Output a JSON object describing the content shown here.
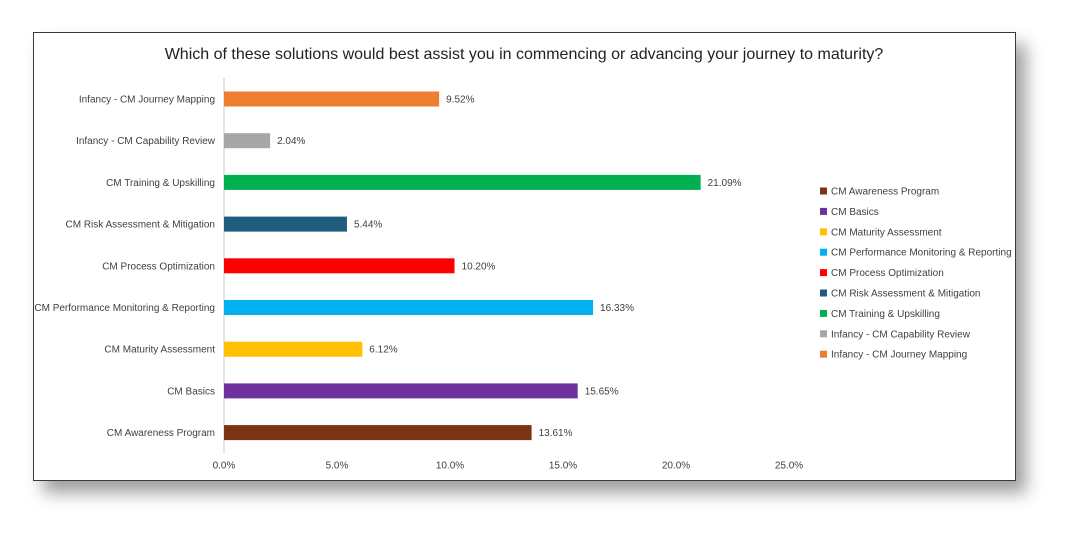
{
  "chart_data": {
    "type": "bar",
    "orientation": "horizontal",
    "title": "Which of these solutions would best assist you in commencing or advancing your journey to maturity?",
    "xlabel": "",
    "ylabel": "",
    "xlim": [
      0,
      25
    ],
    "x_ticks": [
      "0.0%",
      "5.0%",
      "10.0%",
      "15.0%",
      "20.0%",
      "25.0%"
    ],
    "grid": false,
    "legend_position": "right",
    "categories": [
      "CM Awareness Program",
      "CM Basics",
      "CM Maturity Assessment",
      "CM Performance Monitoring & Reporting",
      "CM Process Optimization",
      "CM Risk Assessment & Mitigation",
      "CM Training & Upskilling",
      "Infancy - CM Capability Review",
      "Infancy - CM Journey Mapping"
    ],
    "values": [
      13.61,
      15.65,
      6.12,
      16.33,
      10.2,
      5.44,
      21.09,
      2.04,
      9.52
    ],
    "value_labels": [
      "13.61%",
      "15.65%",
      "6.12%",
      "16.33%",
      "10.20%",
      "5.44%",
      "21.09%",
      "2.04%",
      "9.52%"
    ],
    "colors": [
      "#7B3411",
      "#7030A0",
      "#FFC000",
      "#00B0F0",
      "#FF0000",
      "#1F5C7E",
      "#00B050",
      "#A6A6A6",
      "#ED7D31"
    ]
  }
}
